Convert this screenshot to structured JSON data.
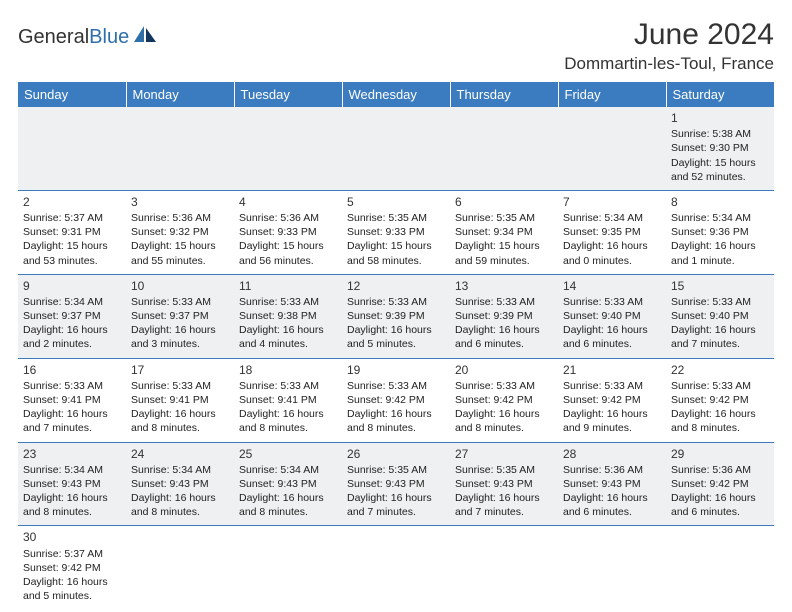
{
  "logo": {
    "text1": "General",
    "text2": "Blue"
  },
  "title": "June 2024",
  "location": "Dommartin-les-Toul, France",
  "colors": {
    "header_bg": "#3b7bbf",
    "header_fg": "#ffffff",
    "row_alt": "#eef0f1",
    "border": "#3b7bbf"
  },
  "day_headers": [
    "Sunday",
    "Monday",
    "Tuesday",
    "Wednesday",
    "Thursday",
    "Friday",
    "Saturday"
  ],
  "weeks": [
    [
      null,
      null,
      null,
      null,
      null,
      null,
      {
        "d": "1",
        "sr": "Sunrise: 5:38 AM",
        "ss": "Sunset: 9:30 PM",
        "dl": "Daylight: 15 hours and 52 minutes."
      }
    ],
    [
      {
        "d": "2",
        "sr": "Sunrise: 5:37 AM",
        "ss": "Sunset: 9:31 PM",
        "dl": "Daylight: 15 hours and 53 minutes."
      },
      {
        "d": "3",
        "sr": "Sunrise: 5:36 AM",
        "ss": "Sunset: 9:32 PM",
        "dl": "Daylight: 15 hours and 55 minutes."
      },
      {
        "d": "4",
        "sr": "Sunrise: 5:36 AM",
        "ss": "Sunset: 9:33 PM",
        "dl": "Daylight: 15 hours and 56 minutes."
      },
      {
        "d": "5",
        "sr": "Sunrise: 5:35 AM",
        "ss": "Sunset: 9:33 PM",
        "dl": "Daylight: 15 hours and 58 minutes."
      },
      {
        "d": "6",
        "sr": "Sunrise: 5:35 AM",
        "ss": "Sunset: 9:34 PM",
        "dl": "Daylight: 15 hours and 59 minutes."
      },
      {
        "d": "7",
        "sr": "Sunrise: 5:34 AM",
        "ss": "Sunset: 9:35 PM",
        "dl": "Daylight: 16 hours and 0 minutes."
      },
      {
        "d": "8",
        "sr": "Sunrise: 5:34 AM",
        "ss": "Sunset: 9:36 PM",
        "dl": "Daylight: 16 hours and 1 minute."
      }
    ],
    [
      {
        "d": "9",
        "sr": "Sunrise: 5:34 AM",
        "ss": "Sunset: 9:37 PM",
        "dl": "Daylight: 16 hours and 2 minutes."
      },
      {
        "d": "10",
        "sr": "Sunrise: 5:33 AM",
        "ss": "Sunset: 9:37 PM",
        "dl": "Daylight: 16 hours and 3 minutes."
      },
      {
        "d": "11",
        "sr": "Sunrise: 5:33 AM",
        "ss": "Sunset: 9:38 PM",
        "dl": "Daylight: 16 hours and 4 minutes."
      },
      {
        "d": "12",
        "sr": "Sunrise: 5:33 AM",
        "ss": "Sunset: 9:39 PM",
        "dl": "Daylight: 16 hours and 5 minutes."
      },
      {
        "d": "13",
        "sr": "Sunrise: 5:33 AM",
        "ss": "Sunset: 9:39 PM",
        "dl": "Daylight: 16 hours and 6 minutes."
      },
      {
        "d": "14",
        "sr": "Sunrise: 5:33 AM",
        "ss": "Sunset: 9:40 PM",
        "dl": "Daylight: 16 hours and 6 minutes."
      },
      {
        "d": "15",
        "sr": "Sunrise: 5:33 AM",
        "ss": "Sunset: 9:40 PM",
        "dl": "Daylight: 16 hours and 7 minutes."
      }
    ],
    [
      {
        "d": "16",
        "sr": "Sunrise: 5:33 AM",
        "ss": "Sunset: 9:41 PM",
        "dl": "Daylight: 16 hours and 7 minutes."
      },
      {
        "d": "17",
        "sr": "Sunrise: 5:33 AM",
        "ss": "Sunset: 9:41 PM",
        "dl": "Daylight: 16 hours and 8 minutes."
      },
      {
        "d": "18",
        "sr": "Sunrise: 5:33 AM",
        "ss": "Sunset: 9:41 PM",
        "dl": "Daylight: 16 hours and 8 minutes."
      },
      {
        "d": "19",
        "sr": "Sunrise: 5:33 AM",
        "ss": "Sunset: 9:42 PM",
        "dl": "Daylight: 16 hours and 8 minutes."
      },
      {
        "d": "20",
        "sr": "Sunrise: 5:33 AM",
        "ss": "Sunset: 9:42 PM",
        "dl": "Daylight: 16 hours and 8 minutes."
      },
      {
        "d": "21",
        "sr": "Sunrise: 5:33 AM",
        "ss": "Sunset: 9:42 PM",
        "dl": "Daylight: 16 hours and 9 minutes."
      },
      {
        "d": "22",
        "sr": "Sunrise: 5:33 AM",
        "ss": "Sunset: 9:42 PM",
        "dl": "Daylight: 16 hours and 8 minutes."
      }
    ],
    [
      {
        "d": "23",
        "sr": "Sunrise: 5:34 AM",
        "ss": "Sunset: 9:43 PM",
        "dl": "Daylight: 16 hours and 8 minutes."
      },
      {
        "d": "24",
        "sr": "Sunrise: 5:34 AM",
        "ss": "Sunset: 9:43 PM",
        "dl": "Daylight: 16 hours and 8 minutes."
      },
      {
        "d": "25",
        "sr": "Sunrise: 5:34 AM",
        "ss": "Sunset: 9:43 PM",
        "dl": "Daylight: 16 hours and 8 minutes."
      },
      {
        "d": "26",
        "sr": "Sunrise: 5:35 AM",
        "ss": "Sunset: 9:43 PM",
        "dl": "Daylight: 16 hours and 7 minutes."
      },
      {
        "d": "27",
        "sr": "Sunrise: 5:35 AM",
        "ss": "Sunset: 9:43 PM",
        "dl": "Daylight: 16 hours and 7 minutes."
      },
      {
        "d": "28",
        "sr": "Sunrise: 5:36 AM",
        "ss": "Sunset: 9:43 PM",
        "dl": "Daylight: 16 hours and 6 minutes."
      },
      {
        "d": "29",
        "sr": "Sunrise: 5:36 AM",
        "ss": "Sunset: 9:42 PM",
        "dl": "Daylight: 16 hours and 6 minutes."
      }
    ],
    [
      {
        "d": "30",
        "sr": "Sunrise: 5:37 AM",
        "ss": "Sunset: 9:42 PM",
        "dl": "Daylight: 16 hours and 5 minutes."
      },
      null,
      null,
      null,
      null,
      null,
      null
    ]
  ]
}
